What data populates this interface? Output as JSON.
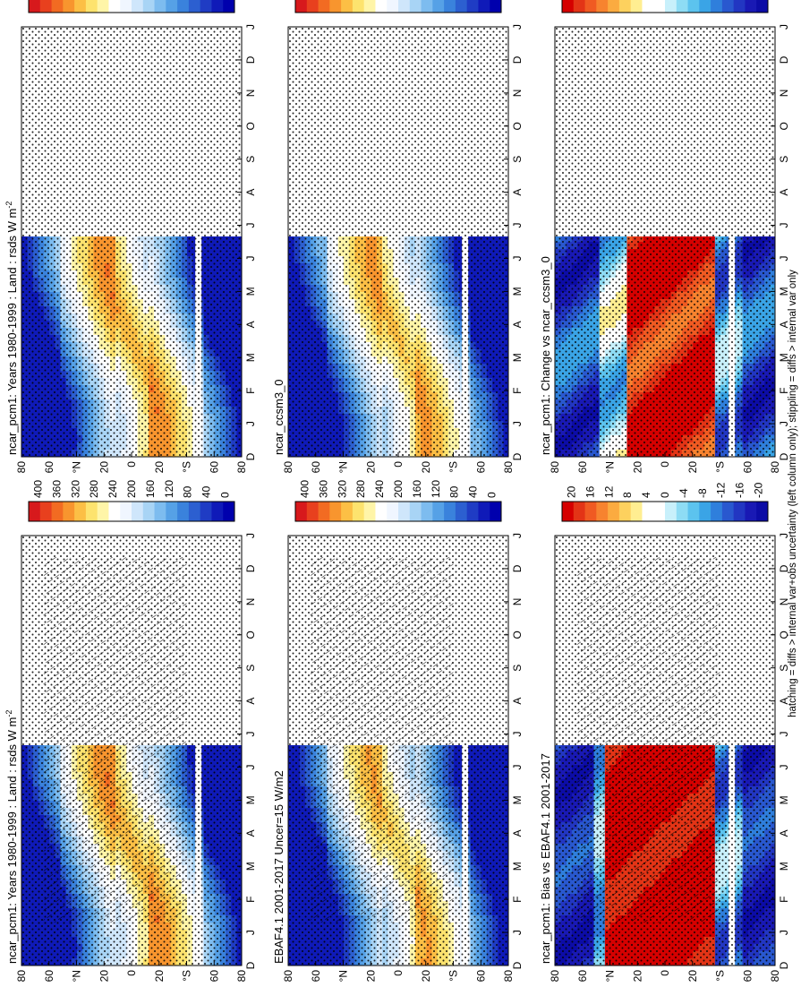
{
  "figure_note": "hatching = diffs > internal var+obs uncertainty (left column only); stippling = diffs > internal var only",
  "color_scales": {
    "absolute": {
      "ticks": [
        "400",
        "360",
        "320",
        "280",
        "240",
        "200",
        "160",
        "120",
        "80",
        "40",
        "0"
      ],
      "colors": [
        "#d7191c",
        "#e8401e",
        "#f26b22",
        "#f8952e",
        "#fcbf45",
        "#fde36e",
        "#fff5a8",
        "#ffffff",
        "#f0f6ff",
        "#cfe6fb",
        "#a8d4f5",
        "#7dbcef",
        "#56a1e6",
        "#3a82dc",
        "#2c5fd0",
        "#1f3cc4",
        "#0f1ab8",
        "#0000ad"
      ]
    },
    "difference": {
      "ticks": [
        "20",
        "16",
        "12",
        "8",
        "4",
        "0",
        "-4",
        "-8",
        "-12",
        "-16",
        "-20"
      ],
      "colors": [
        "#d50000",
        "#e33416",
        "#f05a22",
        "#f7832f",
        "#fbab40",
        "#fdd15e",
        "#ffee91",
        "#ffffff",
        "#ffffff",
        "#c8f0fb",
        "#8edcf4",
        "#5cc3ee",
        "#3aa4e6",
        "#2f7fdc",
        "#2958cf",
        "#2236c2",
        "#1919b4",
        "#0c0ca6"
      ]
    }
  },
  "axis": {
    "month_labels": [
      "D",
      "J",
      "F",
      "M",
      "A",
      "M",
      "J",
      "J",
      "A",
      "S",
      "O",
      "N",
      "D",
      "J"
    ],
    "lat_labels": [
      "80",
      "60",
      "°N",
      "20",
      "0",
      "20",
      "°S",
      "60",
      "80"
    ]
  },
  "chart_data": [
    {
      "id": "p1",
      "type": "heatmap",
      "title": "ncar_pcm1: Years 1980-1999 : Land : rsds W m",
      "title_sup": "-2",
      "scale": "absolute",
      "overlay": "hatch+stipple",
      "field": "abs"
    },
    {
      "id": "p2",
      "type": "heatmap",
      "title": "ncar_pcm1: Years 1980-1999 : Land : rsds W m",
      "title_sup": "-2",
      "scale": "absolute",
      "overlay": "stipple",
      "field": "abs"
    },
    {
      "id": "p3",
      "type": "heatmap",
      "title": "EBAF4.1 2001-2017 Uncer=15 W/m2",
      "title_sup": "",
      "scale": "absolute",
      "overlay": "hatch+stipple",
      "field": "obs"
    },
    {
      "id": "p4",
      "type": "heatmap",
      "title": "ncar_ccsm3_0",
      "title_sup": "",
      "scale": "absolute",
      "overlay": "stipple",
      "field": "abs2"
    },
    {
      "id": "p5",
      "type": "heatmap",
      "title": "ncar_pcm1: Bias vs EBAF4.1 2001-2017",
      "title_sup": "",
      "scale": "difference",
      "overlay": "hatch+stipple",
      "field": "bias"
    },
    {
      "id": "p6",
      "type": "heatmap",
      "title": "ncar_pcm1: Change vs ncar_ccsm3_0",
      "title_sup": "",
      "scale": "difference",
      "overlay": "stipple",
      "field": "change"
    }
  ]
}
